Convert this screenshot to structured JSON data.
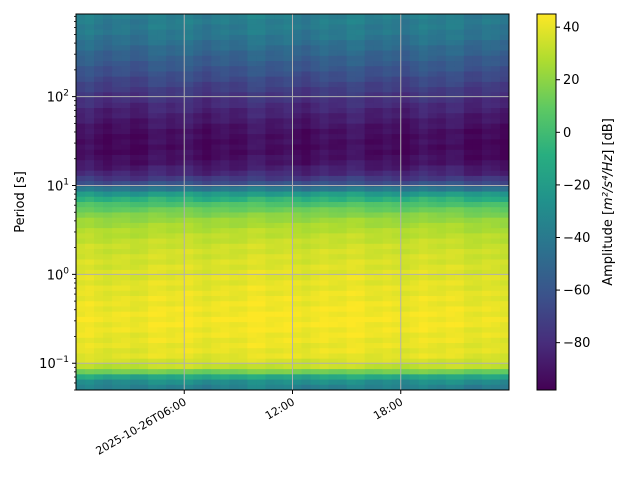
{
  "chart_data": {
    "type": "heatmap",
    "title": "",
    "xlabel": "",
    "ylabel": "Period [s]",
    "y_scale": "log",
    "ylim_seconds": [
      0.05,
      850
    ],
    "y_ticks": [
      {
        "value": 0.1,
        "base": "10",
        "exp": "−1"
      },
      {
        "value": 1,
        "base": "10",
        "exp": "0"
      },
      {
        "value": 10,
        "base": "10",
        "exp": "1"
      },
      {
        "value": 100,
        "base": "10",
        "exp": "2"
      }
    ],
    "x_range": [
      "2025-10-26T00:00",
      "2025-10-27T00:00"
    ],
    "x_ticks": [
      {
        "time": "2025-10-26T06:00",
        "label": "2025-10-26T06:00"
      },
      {
        "time": "2025-10-26T12:00",
        "label": "12:00"
      },
      {
        "time": "2025-10-26T18:00",
        "label": "18:00"
      }
    ],
    "grid": true,
    "colormap": "viridis",
    "colorbar": {
      "label_prefix": "Amplitude [",
      "label_math": "m²/s⁴/Hz",
      "label_suffix": "] [dB]",
      "range": [
        -98,
        45
      ],
      "ticks": [
        {
          "value": 40,
          "label": "40"
        },
        {
          "value": 20,
          "label": "20"
        },
        {
          "value": 0,
          "label": "0"
        },
        {
          "value": -20,
          "label": "−20"
        },
        {
          "value": -40,
          "label": "−40"
        },
        {
          "value": -60,
          "label": "−60"
        },
        {
          "value": -80,
          "label": "−80"
        }
      ]
    },
    "amplitude_profile_db": [
      {
        "period": 0.05,
        "db": -40
      },
      {
        "period": 0.06,
        "db": -32
      },
      {
        "period": 0.07,
        "db": -15
      },
      {
        "period": 0.08,
        "db": 12
      },
      {
        "period": 0.09,
        "db": 30
      },
      {
        "period": 0.12,
        "db": 38
      },
      {
        "period": 0.2,
        "db": 40
      },
      {
        "period": 0.3,
        "db": 42
      },
      {
        "period": 0.5,
        "db": 40
      },
      {
        "period": 1,
        "db": 37
      },
      {
        "period": 2,
        "db": 33
      },
      {
        "period": 3,
        "db": 28
      },
      {
        "period": 4,
        "db": 22
      },
      {
        "period": 5,
        "db": 14
      },
      {
        "period": 6,
        "db": 4
      },
      {
        "period": 7,
        "db": -8
      },
      {
        "period": 8,
        "db": -22
      },
      {
        "period": 9,
        "db": -40
      },
      {
        "period": 10,
        "db": -60
      },
      {
        "period": 13,
        "db": -82
      },
      {
        "period": 18,
        "db": -92
      },
      {
        "period": 25,
        "db": -96
      },
      {
        "period": 40,
        "db": -94
      },
      {
        "period": 70,
        "db": -85
      },
      {
        "period": 100,
        "db": -78
      },
      {
        "period": 200,
        "db": -62
      },
      {
        "period": 350,
        "db": -50
      },
      {
        "period": 500,
        "db": -42
      },
      {
        "period": 850,
        "db": -38
      }
    ]
  }
}
